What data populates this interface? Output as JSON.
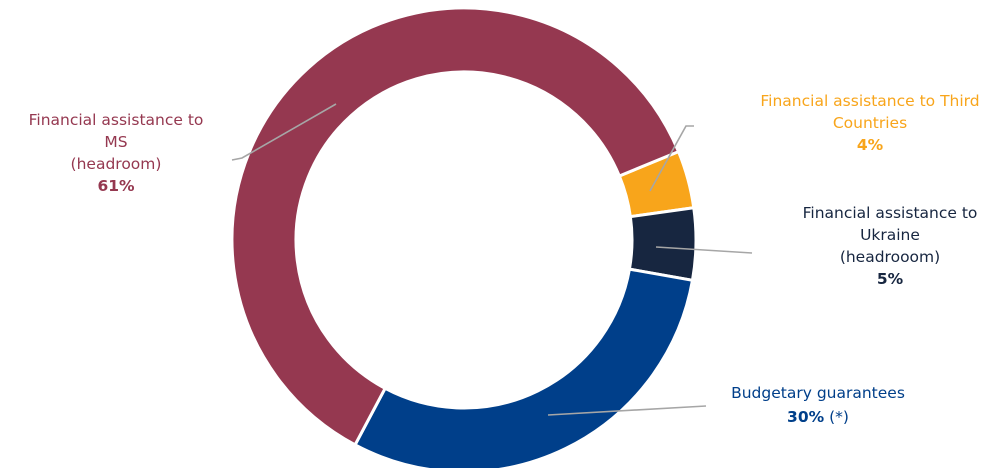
{
  "chart_data": {
    "type": "pie",
    "variant": "donut",
    "title": "",
    "legend": "none",
    "slices": [
      {
        "label_lines": [
          "Financial assistance to Third",
          "Countries"
        ],
        "value": 4,
        "pct_text": "4%",
        "pct_suffix": "",
        "color": "#F8A51B",
        "label_color": "#F8A51B",
        "pct_color": "#F8A51B"
      },
      {
        "label_lines": [
          "Financial assistance to",
          "Ukraine",
          "(headrooom)"
        ],
        "value": 5,
        "pct_text": "5%",
        "pct_suffix": "",
        "color": "#172640",
        "label_color": "#172640",
        "pct_color": "#172640"
      },
      {
        "label_lines": [
          "Budgetary guarantees"
        ],
        "value": 30,
        "pct_text": "30%",
        "pct_suffix": " (*)",
        "color": "#003F8A",
        "label_color": "#003F8A",
        "pct_color": "#003F8A"
      },
      {
        "label_lines": [
          "Financial assistance to",
          "MS",
          "(headroom)"
        ],
        "value": 61,
        "pct_text": "61%",
        "pct_suffix": "",
        "color": "#953850",
        "label_color": "#953850",
        "pct_color": "#953850"
      }
    ],
    "leader_color": "#A6A6A6"
  }
}
